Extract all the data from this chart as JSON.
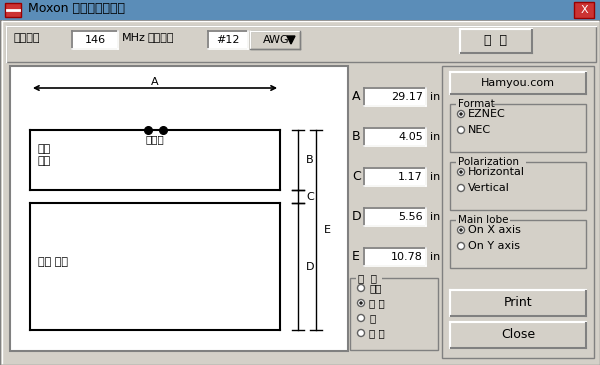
{
  "title": "Moxon 方框天线计算器",
  "titlebar_bg": "#aecde0",
  "window_bg": "#c8dce8",
  "body_bg": "#d4d0c8",
  "white": "#ffffff",
  "calc_btn": "计  算",
  "hamyou": "Hamyou.com",
  "dim_labels": [
    "A",
    "B",
    "C",
    "D",
    "E"
  ],
  "dim_values": [
    "29.17",
    "4.05",
    "1.17",
    "5.56",
    "10.78"
  ],
  "dim_unit": "in",
  "units_label": "单  位",
  "units_options": [
    "英尺",
    "英 时",
    "米",
    "毫 米"
  ],
  "units_selected": 1,
  "format_label": "Format",
  "format_options": [
    "EZNEC",
    "NEC"
  ],
  "format_selected": 0,
  "polarization_label": "Polarization",
  "polarization_options": [
    "Horizontal",
    "Vertical"
  ],
  "polarization_selected": 0,
  "mainlobe_label": "Main lobe",
  "mainlobe_options": [
    "On X axis",
    "On Y axis"
  ],
  "mainlobe_selected": 0,
  "print_btn": "Print",
  "close_btn": "Close",
  "freq_label": "工作频率",
  "freq_val": "146",
  "freq_unit": "MHz",
  "wire_label": "线材尺寸",
  "wire_val": "#12",
  "wire_unit": "AWG",
  "driven_label": "驱动\n单元",
  "refl_label": "反射 单元",
  "feed_label": "馈电点"
}
